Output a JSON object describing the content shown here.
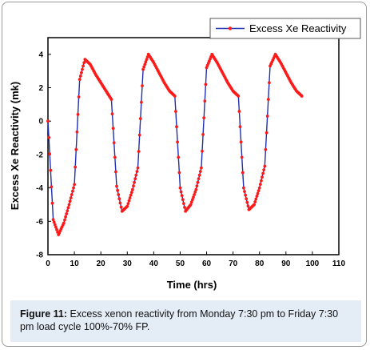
{
  "chart_data": {
    "type": "line",
    "xlabel": "Time (hrs)",
    "ylabel": "Excess Xe Reactivity (mk)",
    "xlim": [
      0,
      110
    ],
    "ylim": [
      -8,
      5
    ],
    "xticks": [
      0,
      10,
      20,
      30,
      40,
      50,
      60,
      70,
      80,
      90,
      100,
      110
    ],
    "yticks": [
      -8,
      -6,
      -4,
      -2,
      0,
      2,
      4
    ],
    "legend_position": "top-right",
    "colors": {
      "line": "#1f2fb0",
      "marker": "#ff1a1a"
    },
    "series": [
      {
        "name": "Excess Xe Reactivity",
        "x": [
          0,
          2,
          4,
          6,
          8,
          10,
          12,
          14,
          16,
          18,
          20,
          22,
          24,
          26,
          28,
          30,
          32,
          34,
          36,
          38,
          40,
          42,
          44,
          46,
          48,
          50,
          52,
          54,
          56,
          58,
          60,
          62,
          64,
          66,
          68,
          70,
          72,
          74,
          76,
          78,
          80,
          82,
          84,
          86,
          88,
          90,
          92,
          94,
          96
        ],
        "y": [
          0,
          -5.9,
          -6.8,
          -6.1,
          -5.0,
          -3.8,
          2.5,
          3.7,
          3.4,
          2.8,
          2.3,
          1.8,
          1.3,
          -3.9,
          -5.4,
          -5.1,
          -4.1,
          -2.8,
          3.1,
          4.0,
          3.5,
          2.9,
          2.3,
          1.8,
          1.5,
          -4.0,
          -5.4,
          -5.0,
          -4.1,
          -2.8,
          3.2,
          4.0,
          3.5,
          2.9,
          2.3,
          1.8,
          1.5,
          -4.0,
          -5.3,
          -5.0,
          -4.0,
          -2.7,
          3.3,
          4.0,
          3.5,
          2.9,
          2.3,
          1.8,
          1.5
        ]
      }
    ]
  },
  "caption": {
    "label": "Figure 11:",
    "text": " Excess xenon reactivity from Monday 7:30 pm to Friday 7:30 pm load cycle 100%-70% FP."
  }
}
